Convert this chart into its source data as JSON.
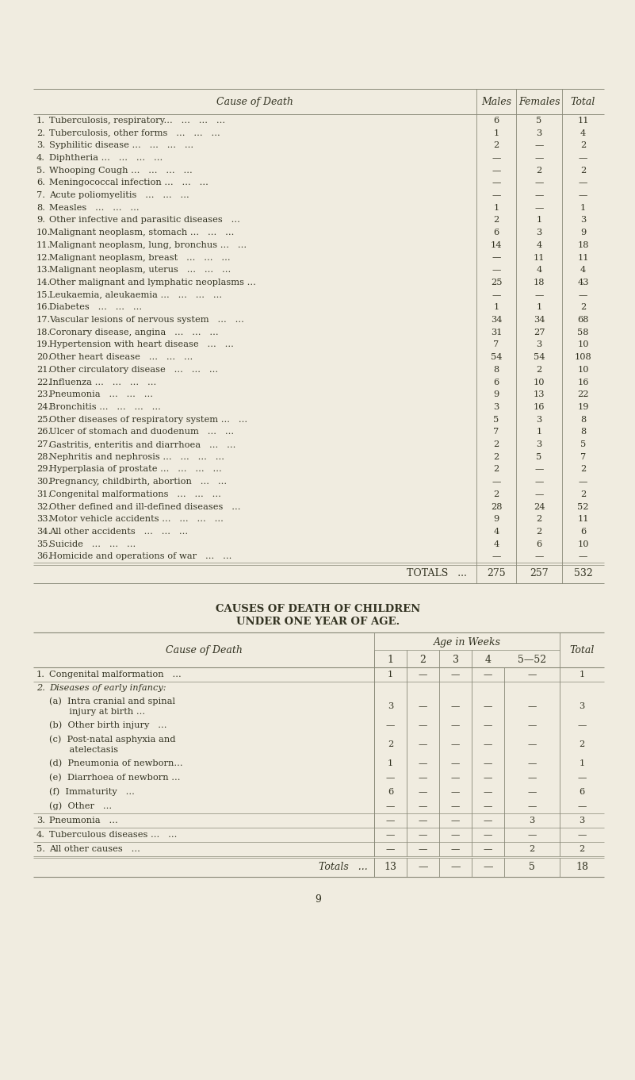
{
  "bg_color": "#f0ece0",
  "page_number": "9",
  "table1": {
    "col_cause_label": "Cause of Death",
    "col_males_label": "Males",
    "col_females_label": "Females",
    "col_total_label": "Total",
    "rows": [
      [
        "1.",
        "Tuberculosis, respiratory...",
        "...",
        "...",
        "...",
        "6",
        "5",
        "11"
      ],
      [
        "2.",
        "Tuberculosis, other forms",
        "...",
        "...",
        "...",
        "1",
        "3",
        "4"
      ],
      [
        "3.",
        "Syphilitic disease ...",
        "...",
        "...",
        "...",
        "2",
        "—",
        "2"
      ],
      [
        "4.",
        "Diphtheria ...",
        "...",
        "...",
        "...",
        "—",
        "—",
        "—"
      ],
      [
        "5.",
        "Whooping Cough ...",
        "...",
        "...",
        "...",
        "—",
        "2",
        "2"
      ],
      [
        "6.",
        "Meningococcal infection ...",
        "...",
        "...",
        "",
        "—",
        "—",
        "—"
      ],
      [
        "7.",
        "Acute poliomyelitis",
        "...",
        "...",
        "...",
        "—",
        "—",
        "—"
      ],
      [
        "8.",
        "Measles",
        "...",
        "...",
        "...",
        "1",
        "—",
        "1"
      ],
      [
        "9.",
        "Other infective and parasitic diseases",
        "...",
        "",
        "",
        "2",
        "1",
        "3"
      ],
      [
        "10.",
        "Malignant neoplasm, stomach ...",
        "...",
        "...",
        "",
        "6",
        "3",
        "9"
      ],
      [
        "11.",
        "Malignant neoplasm, lung, bronchus ...",
        "...",
        "",
        "",
        "14",
        "4",
        "18"
      ],
      [
        "12.",
        "Malignant neoplasm, breast",
        "...",
        "...",
        "...",
        "—",
        "11",
        "11"
      ],
      [
        "13.",
        "Malignant neoplasm, uterus",
        "...",
        "...",
        "...",
        "—",
        "4",
        "4"
      ],
      [
        "14.",
        "Other malignant and lymphatic neoplasms ...",
        "",
        "",
        "",
        "25",
        "18",
        "43"
      ],
      [
        "15.",
        "Leukaemia, aleukaemia ...",
        "...",
        "...",
        "...",
        "—",
        "—",
        "—"
      ],
      [
        "16.",
        "Diabetes",
        "...",
        "...",
        "...",
        "1",
        "1",
        "2"
      ],
      [
        "17.",
        "Vascular lesions of nervous system",
        "...",
        "...",
        "",
        "34",
        "34",
        "68"
      ],
      [
        "18.",
        "Coronary disease, angina",
        "...",
        "...",
        "...",
        "31",
        "27",
        "58"
      ],
      [
        "19.",
        "Hypertension with heart disease",
        "...",
        "...",
        "",
        "7",
        "3",
        "10"
      ],
      [
        "20.",
        "Other heart disease",
        "...",
        "...",
        "...",
        "54",
        "54",
        "108"
      ],
      [
        "21.",
        "Other circulatory disease",
        "...",
        "...",
        "...",
        "8",
        "2",
        "10"
      ],
      [
        "22.",
        "Influenza ...",
        "...",
        "...",
        "...",
        "6",
        "10",
        "16"
      ],
      [
        "23.",
        "Pneumonia",
        "...",
        "...",
        "...",
        "9",
        "13",
        "22"
      ],
      [
        "24.",
        "Bronchitis ...",
        "...",
        "...",
        "...",
        "3",
        "16",
        "19"
      ],
      [
        "25.",
        "Other diseases of respiratory system ...",
        "...",
        "",
        "",
        "5",
        "3",
        "8"
      ],
      [
        "26.",
        "Ulcer of stomach and duodenum",
        "...",
        "...",
        "",
        "7",
        "1",
        "8"
      ],
      [
        "27.",
        "Gastritis, enteritis and diarrhoea",
        "...",
        "...",
        "",
        "2",
        "3",
        "5"
      ],
      [
        "28.",
        "Nephritis and nephrosis ...",
        "...",
        "...",
        "...",
        "2",
        "5",
        "7"
      ],
      [
        "29.",
        "Hyperplasia of prostate ...",
        "...",
        "...",
        "...",
        "2",
        "—",
        "2"
      ],
      [
        "30.",
        "Pregnancy, childbirth, abortion",
        "...",
        "...",
        "",
        "—",
        "—",
        "—"
      ],
      [
        "31.",
        "Congenital malformations",
        "...",
        "...",
        "...",
        "2",
        "—",
        "2"
      ],
      [
        "32.",
        "Other defined and ill-defined diseases",
        "...",
        "",
        "",
        "28",
        "24",
        "52"
      ],
      [
        "33.",
        "Motor vehicle accidents ...",
        "...",
        "...",
        "...",
        "9",
        "2",
        "11"
      ],
      [
        "34.",
        "All other accidents",
        "...",
        "...",
        "...",
        "4",
        "2",
        "6"
      ],
      [
        "35.",
        "Suicide",
        "...",
        "...",
        "...",
        "4",
        "6",
        "10"
      ],
      [
        "36.",
        "Homicide and operations of war",
        "...",
        "...",
        "",
        "—",
        "—",
        "—"
      ]
    ],
    "totals_label": "TOTALS",
    "totals_dots": "...",
    "totals": [
      "275",
      "257",
      "532"
    ]
  },
  "table2": {
    "title1": "CAUSES OF DEATH OF CHILDREN",
    "title2": "UNDER ONE YEAR OF AGE.",
    "col_cause_label": "Cause of Death",
    "col_age_label": "Age in Weeks",
    "col_week_labels": [
      "1",
      "2",
      "3",
      "4",
      "5—52"
    ],
    "col_total_label": "Total",
    "rows": [
      {
        "num": "1.",
        "cause": "Congenital malformation",
        "dots": "...",
        "w1": "1",
        "w2": "—",
        "w3": "—",
        "w4": "—",
        "w5": "—",
        "tot": "1",
        "multiline": false
      },
      {
        "num": "2.",
        "cause": "Diseases of early infancy:",
        "dots": "",
        "w1": "",
        "w2": "",
        "w3": "",
        "w4": "",
        "w5": "",
        "tot": "",
        "multiline": false,
        "italic": true
      },
      {
        "num": "",
        "cause": "(a)  Intra cranial and spinal\n       injury at birth ...",
        "dots": "...",
        "w1": "3",
        "w2": "—",
        "w3": "—",
        "w4": "—",
        "w5": "—",
        "tot": "3",
        "multiline": true
      },
      {
        "num": "",
        "cause": "(b)  Other birth injury",
        "dots": "...",
        "w1": "—",
        "w2": "—",
        "w3": "—",
        "w4": "—",
        "w5": "—",
        "tot": "—",
        "multiline": false
      },
      {
        "num": "",
        "cause": "(c)  Post-natal asphyxia and\n       atelectasis",
        "dots": "...",
        "w1": "2",
        "w2": "—",
        "w3": "—",
        "w4": "—",
        "w5": "—",
        "tot": "2",
        "multiline": true
      },
      {
        "num": "",
        "cause": "(d)  Pneumonia of newborn...",
        "dots": "",
        "w1": "1",
        "w2": "—",
        "w3": "—",
        "w4": "—",
        "w5": "—",
        "tot": "1",
        "multiline": false
      },
      {
        "num": "",
        "cause": "(e)  Diarrhoea of newborn ...",
        "dots": "",
        "w1": "—",
        "w2": "—",
        "w3": "—",
        "w4": "—",
        "w5": "—",
        "tot": "—",
        "multiline": false
      },
      {
        "num": "",
        "cause": "(f)  Immaturity",
        "dots": "...",
        "w1": "6",
        "w2": "—",
        "w3": "—",
        "w4": "—",
        "w5": "—",
        "tot": "6",
        "multiline": false
      },
      {
        "num": "",
        "cause": "(g)  Other",
        "dots": "...",
        "w1": "—",
        "w2": "—",
        "w3": "—",
        "w4": "—",
        "w5": "—",
        "tot": "—",
        "multiline": false
      },
      {
        "num": "3.",
        "cause": "Pneumonia",
        "dots": "...",
        "w1": "—",
        "w2": "—",
        "w3": "—",
        "w4": "—",
        "w5": "3",
        "tot": "3",
        "multiline": false
      },
      {
        "num": "4.",
        "cause": "Tuberculous diseases ...",
        "dots": "...",
        "w1": "—",
        "w2": "—",
        "w3": "—",
        "w4": "—",
        "w5": "—",
        "tot": "—",
        "multiline": false
      },
      {
        "num": "5.",
        "cause": "All other causes",
        "dots": "...",
        "w1": "—",
        "w2": "—",
        "w3": "—",
        "w4": "—",
        "w5": "2",
        "tot": "2",
        "multiline": false
      }
    ],
    "totals_label": "Totals",
    "totals_dots": "...",
    "totals": [
      "13",
      "—",
      "—",
      "—",
      "5",
      "18"
    ]
  }
}
